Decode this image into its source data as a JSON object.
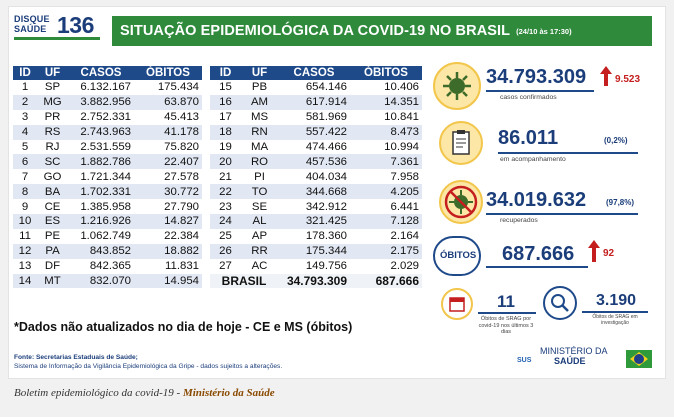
{
  "header": {
    "logo_top": "DISQUE",
    "logo_bottom": "SAÚDE",
    "logo_number": "136",
    "title": "SITUAÇÃO EPIDEMIOLÓGICA DA COVID-19 NO BRASIL",
    "date": "(24/10 às 17:30)"
  },
  "table_headers": [
    "ID",
    "UF",
    "CASOS",
    "ÓBITOS"
  ],
  "left_rows": [
    [
      "1",
      "SP",
      "6.132.167",
      "175.434"
    ],
    [
      "2",
      "MG",
      "3.882.956",
      "63.870"
    ],
    [
      "3",
      "PR",
      "2.752.331",
      "45.413"
    ],
    [
      "4",
      "RS",
      "2.743.963",
      "41.178"
    ],
    [
      "5",
      "RJ",
      "2.531.559",
      "75.820"
    ],
    [
      "6",
      "SC",
      "1.882.786",
      "22.407"
    ],
    [
      "7",
      "GO",
      "1.721.344",
      "27.578"
    ],
    [
      "8",
      "BA",
      "1.702.331",
      "30.772"
    ],
    [
      "9",
      "CE",
      "1.385.958",
      "27.790"
    ],
    [
      "10",
      "ES",
      "1.216.926",
      "14.827"
    ],
    [
      "11",
      "PE",
      "1.062.749",
      "22.384"
    ],
    [
      "12",
      "PA",
      "843.852",
      "18.882"
    ],
    [
      "13",
      "DF",
      "842.365",
      "11.831"
    ],
    [
      "14",
      "MT",
      "832.070",
      "14.954"
    ]
  ],
  "right_rows": [
    [
      "15",
      "PB",
      "654.146",
      "10.406"
    ],
    [
      "16",
      "AM",
      "617.914",
      "14.351"
    ],
    [
      "17",
      "MS",
      "581.969",
      "10.841"
    ],
    [
      "18",
      "RN",
      "557.422",
      "8.473"
    ],
    [
      "19",
      "MA",
      "474.466",
      "10.994"
    ],
    [
      "20",
      "RO",
      "457.536",
      "7.361"
    ],
    [
      "21",
      "PI",
      "404.034",
      "7.958"
    ],
    [
      "22",
      "TO",
      "344.668",
      "4.205"
    ],
    [
      "23",
      "SE",
      "342.912",
      "6.441"
    ],
    [
      "24",
      "AL",
      "321.425",
      "7.128"
    ],
    [
      "25",
      "AP",
      "178.360",
      "2.164"
    ],
    [
      "26",
      "RR",
      "175.344",
      "2.175"
    ],
    [
      "27",
      "AC",
      "149.756",
      "2.029"
    ]
  ],
  "total": {
    "label": "BRASIL",
    "casos": "34.793.309",
    "obitos": "687.666"
  },
  "note": "*Dados não atualizados no dia de hoje - CE e MS (óbitos)",
  "source": {
    "line1": "Fonte: Secretarias Estaduais de Saúde;",
    "line2": "Sistema de Informação da Vigilância Epidemiológica da Gripe - dados sujeitos a alterações."
  },
  "stats": {
    "confirmed": {
      "value": "34.793.309",
      "delta": "9.523",
      "label": "casos confirmados"
    },
    "monitoring": {
      "value": "86.011",
      "pct": "(0,2%)",
      "label": "em acompanhamento"
    },
    "recovered": {
      "value": "34.019.632",
      "pct": "(97,8%)",
      "label": "recuperados"
    },
    "deaths": {
      "label": "ÓBITOS",
      "value": "687.666",
      "delta": "92"
    },
    "srag": {
      "value": "11",
      "label": "Óbitos de SRAG por covid-19 nos últimos 3 dias"
    },
    "investigation": {
      "value": "3.190",
      "label": "Óbitos de SRAG em investigação"
    }
  },
  "brand": {
    "sus": "SUS",
    "ministry_line1": "MINISTÉRIO DA",
    "ministry_line2": "SAÚDE"
  },
  "caption": {
    "text": "Boletim epidemiológico da covid-19 - ",
    "source": "Ministério da Saúde"
  },
  "colors": {
    "green": "#2f8a3c",
    "navy": "#1f4a8a",
    "accent_red": "#c41e1e",
    "circle_yellow": "#fde7a6"
  }
}
